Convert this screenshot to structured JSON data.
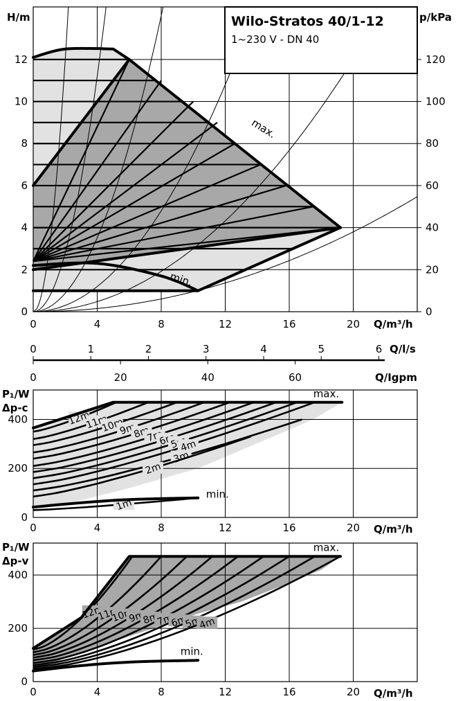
{
  "title": "Wilo-Stratos 40/1-12",
  "subtitle": "1~230 V - DN 40",
  "colors": {
    "light_area": "#e2e2e2",
    "dark_area": "#a8a8a8",
    "line": "#000000"
  },
  "chart_data": [
    {
      "type": "line",
      "name": "head",
      "xlabel": "Q/m³/h",
      "ylabel": "H/m",
      "y2label": "p/kPa",
      "xlim": [
        0,
        24
      ],
      "ylim": [
        0,
        14.5
      ],
      "xticks": [
        0,
        4,
        8,
        12,
        16,
        20
      ],
      "yticks": [
        0,
        2,
        4,
        6,
        8,
        10,
        12
      ],
      "y2ticks": [
        0,
        20,
        40,
        60,
        80,
        100,
        120
      ],
      "grid": true,
      "envelope_light": [
        [
          0,
          12.1
        ],
        [
          2,
          12.5
        ],
        [
          5,
          12.5
        ],
        [
          6,
          12
        ],
        [
          19.2,
          4
        ],
        [
          10.3,
          1
        ],
        [
          0,
          1
        ]
      ],
      "envelope_dark": [
        [
          0,
          6
        ],
        [
          6,
          12
        ],
        [
          19.2,
          4
        ],
        [
          0,
          2
        ]
      ],
      "max_curve": [
        [
          0,
          12.1
        ],
        [
          2,
          12.5
        ],
        [
          5,
          12.5
        ],
        [
          6,
          12
        ],
        [
          19.2,
          4
        ]
      ],
      "min_curve": [
        [
          0,
          2.2
        ],
        [
          4,
          2.3
        ],
        [
          8,
          1.7
        ],
        [
          10.3,
          1
        ]
      ],
      "constant_head_lines": [
        1,
        2,
        3,
        4,
        5,
        6,
        7,
        8,
        9,
        10,
        11,
        12
      ],
      "variable_head_lines": [
        [
          [
            0,
            2.4
          ],
          [
            6,
            12
          ]
        ],
        [
          [
            0,
            2.4
          ],
          [
            8,
            11
          ]
        ],
        [
          [
            0,
            2.4
          ],
          [
            10,
            10
          ]
        ],
        [
          [
            0,
            2.4
          ],
          [
            11.5,
            9
          ]
        ],
        [
          [
            0,
            2.4
          ],
          [
            12.6,
            8
          ]
        ],
        [
          [
            0,
            2.4
          ],
          [
            14.2,
            7
          ]
        ],
        [
          [
            0,
            2.4
          ],
          [
            15.8,
            6
          ]
        ],
        [
          [
            0,
            2.4
          ],
          [
            17.5,
            5
          ]
        ],
        [
          [
            0,
            2.4
          ],
          [
            19.2,
            4
          ]
        ]
      ],
      "system_curve_k": [
        3,
        0.7,
        0.22,
        0.075,
        0.03,
        0.0095
      ],
      "labels": {
        "max": "max.",
        "min": "min."
      }
    },
    {
      "type": "axis",
      "name": "flow-scales",
      "ls_label": "Q/l/s",
      "ls_ticks": [
        0,
        1,
        2,
        3,
        4,
        5,
        6
      ],
      "igpm_label": "Q/Igpm",
      "igpm_ticks": [
        0,
        20,
        40,
        60
      ]
    },
    {
      "type": "line",
      "name": "power-dp-c",
      "ylabel_lines": [
        "P₁/W",
        "Δp-c"
      ],
      "xlabel": "Q/m³/h",
      "xlim": [
        0,
        24
      ],
      "ylim": [
        0,
        520
      ],
      "xticks": [
        0,
        4,
        8,
        12,
        16,
        20
      ],
      "yticks": [
        0,
        200,
        400
      ],
      "grid": true,
      "area": [
        [
          0,
          370
        ],
        [
          5,
          470
        ],
        [
          19.3,
          470
        ],
        [
          17.5,
          400
        ],
        [
          15,
          330
        ],
        [
          13,
          275
        ],
        [
          10.3,
          200
        ],
        [
          6,
          120
        ],
        [
          3,
          70
        ],
        [
          0,
          40
        ]
      ],
      "max_curve": [
        [
          0,
          365
        ],
        [
          5,
          470
        ],
        [
          19.3,
          470
        ]
      ],
      "min_curve": [
        [
          0,
          42
        ],
        [
          3,
          60
        ],
        [
          6,
          73
        ],
        [
          10.3,
          80
        ]
      ],
      "head_curves": [
        {
          "label": "12m",
          "x_end": 5.2,
          "start": 350
        },
        {
          "label": "11m",
          "x_end": 7.2,
          "start": 320
        },
        {
          "label": "10m",
          "x_end": 9.0,
          "start": 295
        },
        {
          "label": "9m",
          "x_end": 10.7,
          "start": 265
        },
        {
          "label": "8m",
          "x_end": 12.3,
          "start": 240
        },
        {
          "label": "7m",
          "x_end": 13.8,
          "start": 210
        },
        {
          "label": "6m",
          "x_end": 15.2,
          "start": 185
        },
        {
          "label": "5m",
          "x_end": 16.5,
          "start": 160
        },
        {
          "label": "4m",
          "x_end": 17.6,
          "start": 135
        },
        {
          "label": "3m",
          "x_end": 16.8,
          "start": 110
        },
        {
          "label": "2m",
          "x_end": 13.6,
          "start": 85
        },
        {
          "label": "1m",
          "x_end": 10.3,
          "start": 30
        }
      ],
      "labels": {
        "max": "max.",
        "min": "min."
      }
    },
    {
      "type": "line",
      "name": "power-dp-v",
      "ylabel_lines": [
        "P₁/W",
        "Δp-v"
      ],
      "xlabel": "Q/m³/h",
      "xlim": [
        0,
        24
      ],
      "ylim": [
        0,
        520
      ],
      "xticks": [
        0,
        4,
        8,
        12,
        16,
        20
      ],
      "yticks": [
        0,
        200,
        400
      ],
      "grid": true,
      "area": [
        [
          0,
          125
        ],
        [
          3,
          240
        ],
        [
          6,
          470
        ],
        [
          19.2,
          470
        ],
        [
          18,
          420
        ],
        [
          16,
          370
        ],
        [
          13,
          300
        ],
        [
          10.3,
          255
        ],
        [
          8,
          210
        ],
        [
          4,
          130
        ],
        [
          0,
          45
        ]
      ],
      "max_curve": [
        [
          0,
          125
        ],
        [
          3,
          240
        ],
        [
          6,
          470
        ],
        [
          19.2,
          470
        ]
      ],
      "min_curve": [
        [
          0,
          40
        ],
        [
          3,
          60
        ],
        [
          6,
          73
        ],
        [
          10.3,
          80
        ]
      ],
      "head_curves": [
        {
          "label": "12m",
          "x_end": 6.2,
          "start": 120
        },
        {
          "label": "11m",
          "x_end": 8.0,
          "start": 110
        },
        {
          "label": "10m",
          "x_end": 9.6,
          "start": 100
        },
        {
          "label": "9m",
          "x_end": 11.2,
          "start": 90
        },
        {
          "label": "8m",
          "x_end": 12.8,
          "start": 80
        },
        {
          "label": "7m",
          "x_end": 14.4,
          "start": 70
        },
        {
          "label": "6m",
          "x_end": 16.0,
          "start": 62
        },
        {
          "label": "5m",
          "x_end": 17.6,
          "start": 55
        },
        {
          "label": "4m",
          "x_end": 19.2,
          "start": 48
        }
      ],
      "labels": {
        "max": "max.",
        "min": "min."
      }
    }
  ]
}
